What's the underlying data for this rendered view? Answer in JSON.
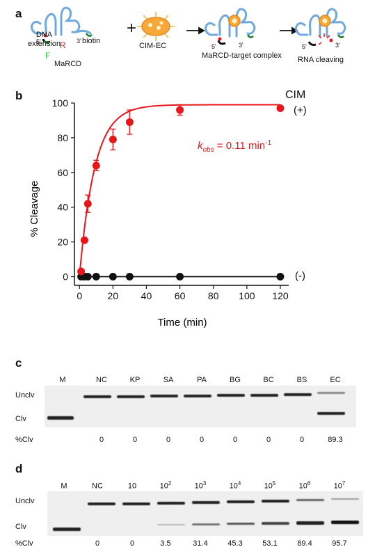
{
  "panel_a": {
    "letter": "a",
    "labels": {
      "dna_extension": "DNA\nextension",
      "marcd": "MaRCD",
      "biotin": "biotin",
      "r": "R",
      "f": "F",
      "five_prime": "5'",
      "three_prime": "3'",
      "plus": "+",
      "cim_ec": "CIM-EC",
      "complex": "MaRCD-target complex",
      "rna_cleaving": "RNA cleaving"
    }
  },
  "panel_b": {
    "letter": "b",
    "cim_label": "CIM",
    "plus_label": "(+)",
    "minus_label": "(-)",
    "kobs_prefix": "k",
    "kobs_sub": "obs",
    "kobs_value": " = 0.11 min",
    "kobs_sup": "-1",
    "colors": {
      "positive": "#e8161b",
      "negative": "#111111"
    }
  },
  "chart_data": {
    "type": "scatter",
    "xlabel": "Time (min)",
    "ylabel": "% Cleavage",
    "xlim": [
      -3,
      125
    ],
    "ylim": [
      -5,
      100
    ],
    "xticks": [
      0,
      20,
      40,
      60,
      80,
      100,
      120
    ],
    "yticks": [
      0,
      20,
      40,
      60,
      80,
      100
    ],
    "series": [
      {
        "name": "(+)",
        "color": "#e8161b",
        "x": [
          1,
          3,
          5,
          10,
          20,
          30,
          60,
          120
        ],
        "y": [
          3,
          21,
          42,
          64,
          79,
          89,
          96,
          97
        ],
        "err": [
          0,
          0,
          5,
          3,
          6,
          7,
          3,
          0
        ],
        "fit": {
          "model": "y = A(1 - e^{-k t})",
          "A": 99,
          "k": 0.11
        }
      },
      {
        "name": "(-)",
        "color": "#111111",
        "x": [
          1,
          3,
          5,
          10,
          20,
          30,
          60,
          120
        ],
        "y": [
          0,
          0,
          0,
          0,
          0,
          0,
          0,
          0
        ]
      }
    ]
  },
  "panel_c": {
    "letter": "c",
    "lanes": [
      "M",
      "NC",
      "KP",
      "SA",
      "PA",
      "BG",
      "BC",
      "BS",
      "EC"
    ],
    "row_labels": {
      "uncleaved": "Unclv",
      "cleaved": "Clv",
      "percent": "%Clv"
    },
    "percent_clv": [
      "",
      "0",
      "0",
      "0",
      "0",
      "0",
      "0",
      "0",
      "89.3"
    ]
  },
  "panel_d": {
    "letter": "d",
    "lanes": [
      {
        "base": "M",
        "sup": ""
      },
      {
        "base": "NC",
        "sup": ""
      },
      {
        "base": "10",
        "sup": ""
      },
      {
        "base": "10",
        "sup": "2"
      },
      {
        "base": "10",
        "sup": "3"
      },
      {
        "base": "10",
        "sup": "4"
      },
      {
        "base": "10",
        "sup": "5"
      },
      {
        "base": "10",
        "sup": "6"
      },
      {
        "base": "10",
        "sup": "7"
      }
    ],
    "row_labels": {
      "uncleaved": "Unclv",
      "cleaved": "Clv",
      "percent": "%Clv"
    },
    "percent_clv": [
      "",
      "0",
      "0",
      "3.5",
      "31.4",
      "45.3",
      "53.1",
      "89.4",
      "95.7"
    ]
  }
}
